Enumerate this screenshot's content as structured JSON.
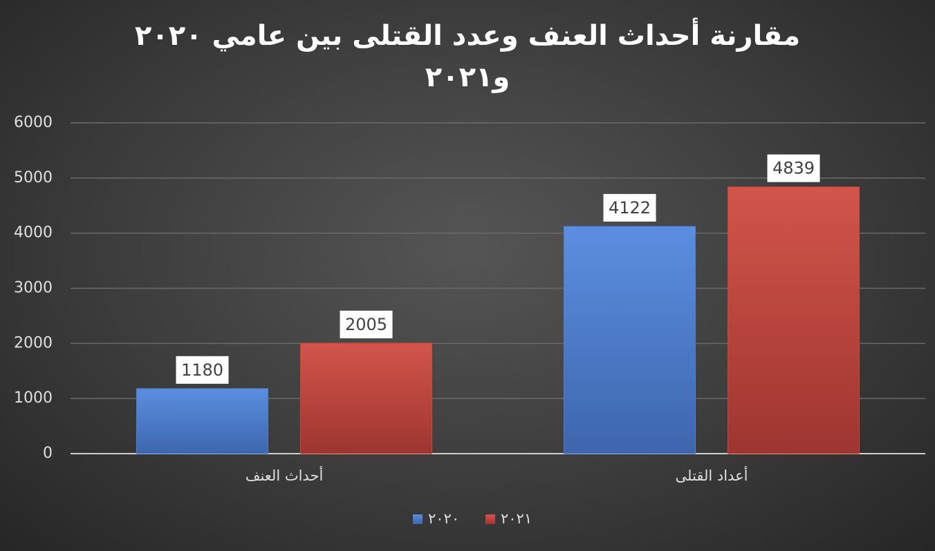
{
  "chart_data": {
    "type": "bar",
    "title": "مقارنة أحداث العنف وعدد القتلى بين عامي ٢٠٢٠ و٢٠٢١",
    "categories": [
      "أحداث العنف",
      "أعداد القتلى"
    ],
    "series": [
      {
        "name": "٢٠٢٠",
        "color": "#4f7fcf",
        "values": [
          1180,
          4122
        ]
      },
      {
        "name": "٢٠٢١",
        "color": "#c9473d",
        "values": [
          2005,
          4839
        ]
      }
    ],
    "ylim": [
      0,
      6000
    ],
    "yticks": [
      0,
      1000,
      2000,
      3000,
      4000,
      5000,
      6000
    ],
    "grid": true,
    "legend": "bottom",
    "data_labels": true
  }
}
